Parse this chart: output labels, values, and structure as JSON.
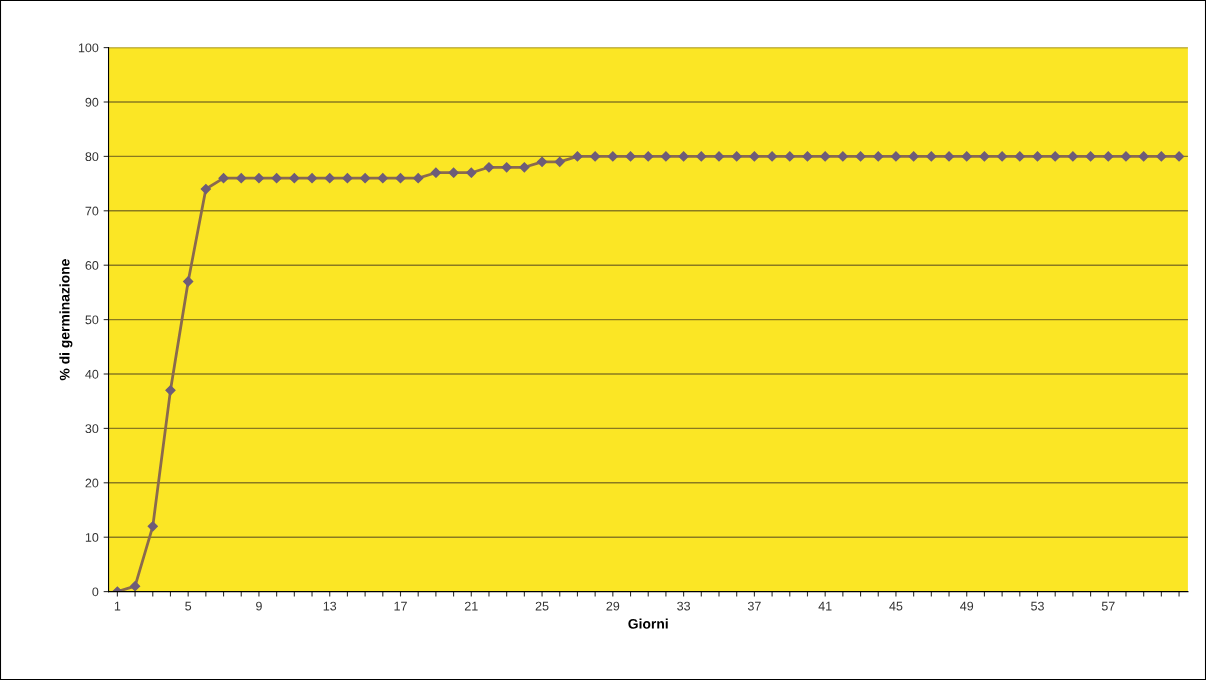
{
  "chart_data": {
    "type": "line",
    "xlabel": "Giorni",
    "ylabel": "% di germinazione",
    "categories": [
      "1",
      null,
      null,
      null,
      "5",
      null,
      null,
      null,
      "9",
      null,
      null,
      null,
      "13",
      null,
      null,
      null,
      "17",
      null,
      null,
      null,
      "21",
      null,
      null,
      null,
      "25",
      null,
      null,
      null,
      "29",
      null,
      null,
      null,
      "33",
      null,
      null,
      null,
      "37",
      null,
      null,
      null,
      "41",
      null,
      null,
      null,
      "45",
      null,
      null,
      null,
      "49",
      null,
      null,
      null,
      "53",
      null,
      null,
      null,
      "57",
      null,
      null,
      null,
      null
    ],
    "series": [
      {
        "color": "#8a6a4e",
        "values": [
          0,
          1,
          12,
          37,
          57,
          74,
          76,
          76,
          76,
          76,
          76,
          76,
          76,
          76,
          76,
          76,
          76,
          76,
          77,
          77,
          77,
          78,
          78,
          78,
          79,
          79,
          80,
          80,
          80,
          80,
          80,
          80,
          80,
          80,
          80,
          80,
          80,
          80,
          80,
          80,
          80,
          80,
          80,
          80,
          80,
          80,
          80,
          80,
          80,
          80,
          80,
          80,
          80,
          80,
          80,
          80,
          80,
          80,
          80,
          80,
          80
        ]
      }
    ],
    "ylim": [
      0,
      100
    ],
    "yticks": [
      0,
      10,
      20,
      30,
      40,
      50,
      60,
      70,
      80,
      90,
      100
    ],
    "grid": "y",
    "marker": "diamond",
    "line_style": "solid"
  }
}
